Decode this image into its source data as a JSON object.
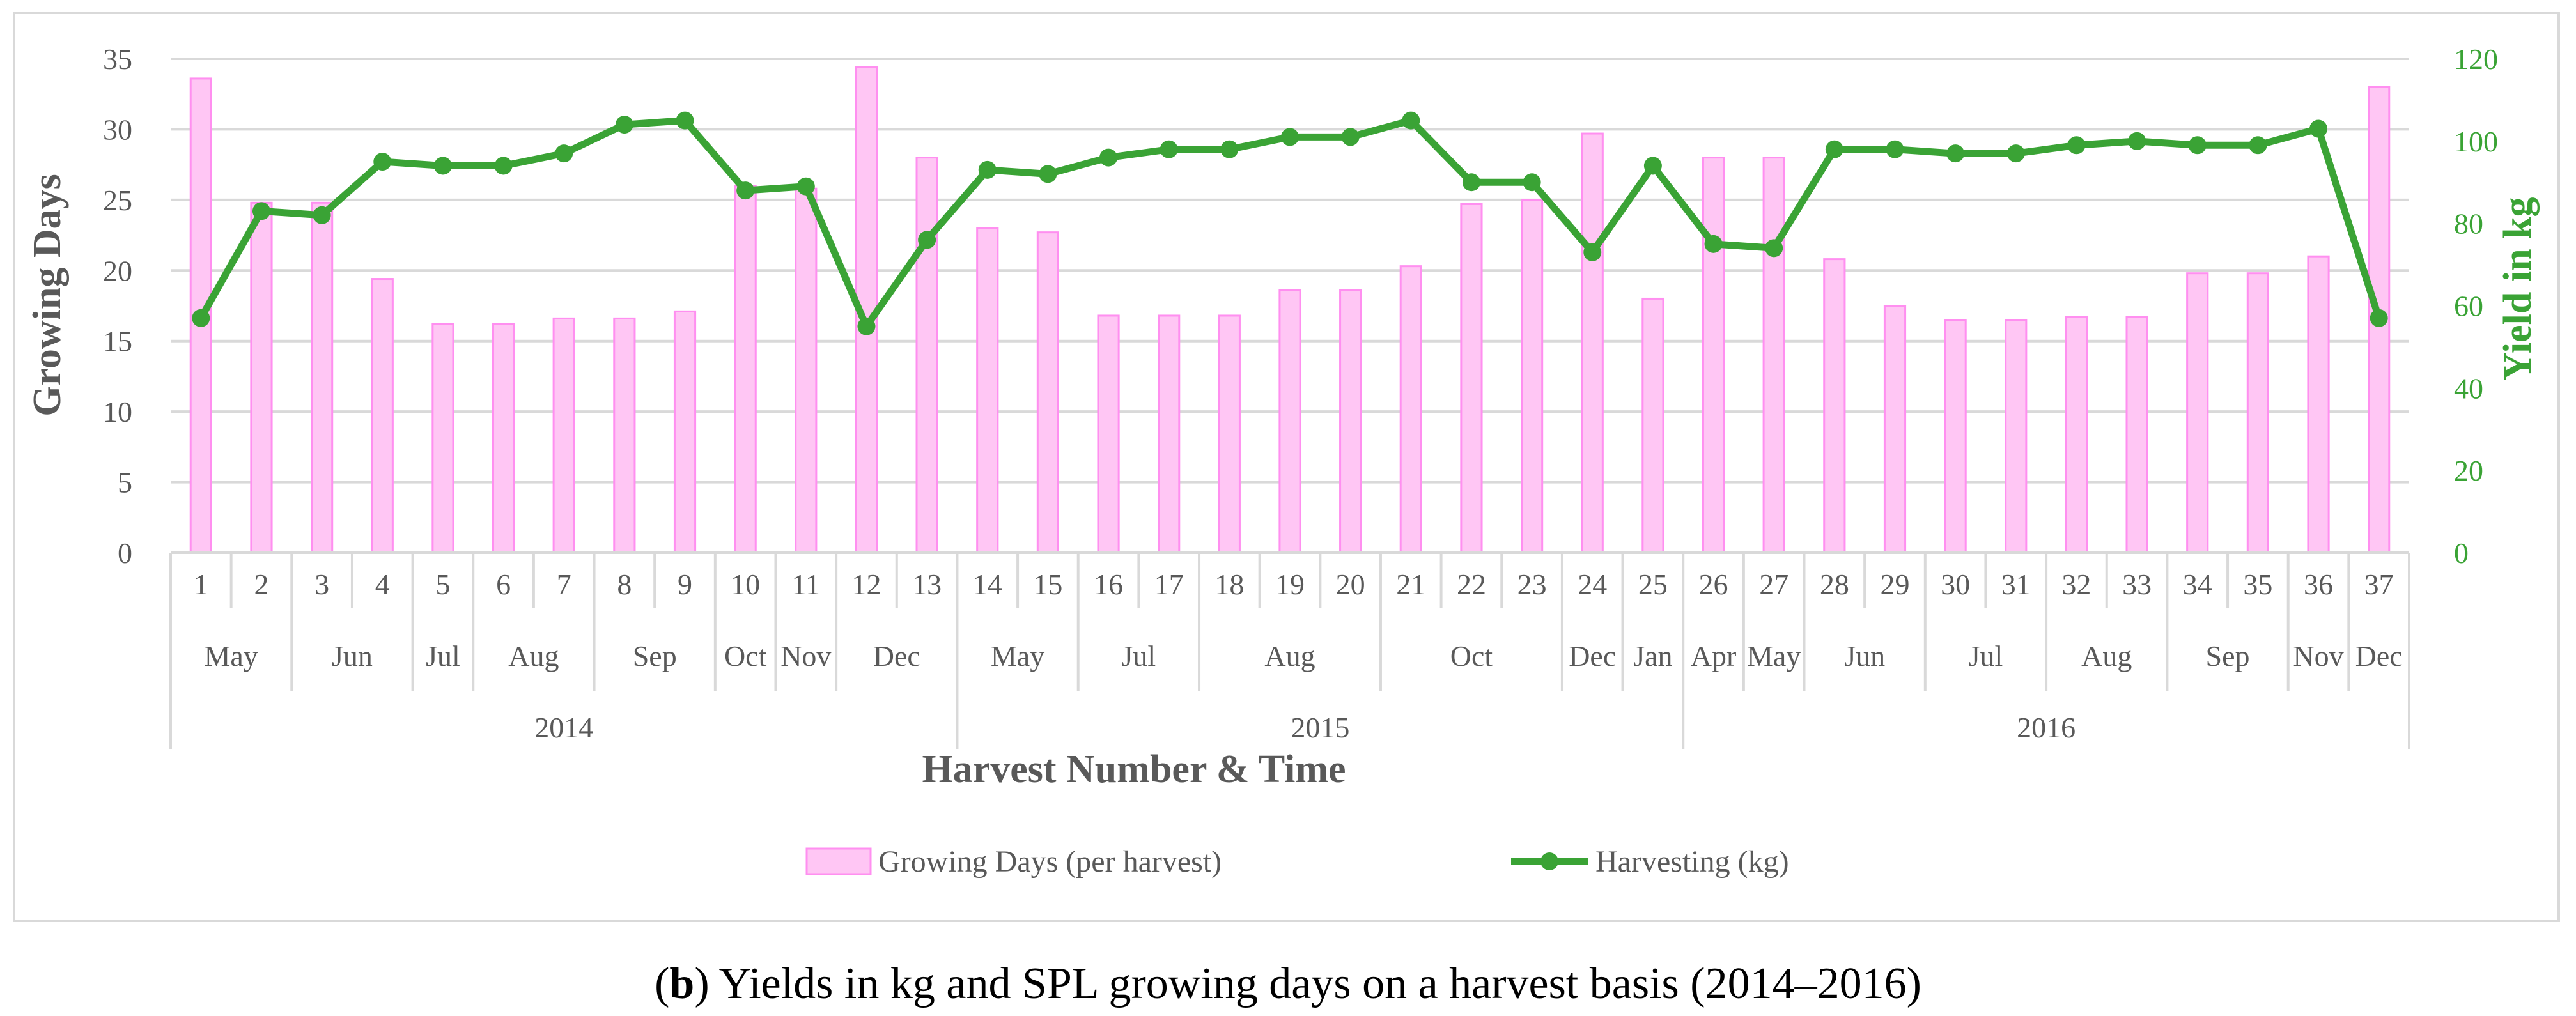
{
  "caption": {
    "label_bold": "b",
    "text": "Yields in kg and SPL growing days on a harvest basis (2014–2016)"
  },
  "colors": {
    "bar_fill": "#ffc6f4",
    "bar_stroke": "#ff8ff0",
    "line": "#3aa335",
    "grid": "#d9d9d9",
    "axis_text": "#595959"
  },
  "chart_data": {
    "type": "bar+line",
    "xlabel": "Harvest Number & Time",
    "ylabel": "Growing Days",
    "y2label": "Yield in kg",
    "ylim": [
      0,
      35
    ],
    "yticks": [
      0,
      5,
      10,
      15,
      20,
      25,
      30,
      35
    ],
    "y2lim": [
      0,
      120
    ],
    "y2ticks": [
      0,
      20,
      40,
      60,
      80,
      100,
      120
    ],
    "categories": [
      "1",
      "2",
      "3",
      "4",
      "5",
      "6",
      "7",
      "8",
      "9",
      "10",
      "11",
      "12",
      "13",
      "14",
      "15",
      "16",
      "17",
      "18",
      "19",
      "20",
      "21",
      "22",
      "23",
      "24",
      "25",
      "26",
      "27",
      "28",
      "29",
      "30",
      "31",
      "32",
      "33",
      "34",
      "35",
      "36",
      "37"
    ],
    "months": [
      {
        "label": "May",
        "start": 1,
        "end": 2
      },
      {
        "label": "Jun",
        "start": 3,
        "end": 4
      },
      {
        "label": "Jul",
        "start": 5,
        "end": 5
      },
      {
        "label": "Aug",
        "start": 6,
        "end": 7
      },
      {
        "label": "Sep",
        "start": 8,
        "end": 9
      },
      {
        "label": "Oct",
        "start": 10,
        "end": 10
      },
      {
        "label": "Nov",
        "start": 11,
        "end": 11
      },
      {
        "label": "Dec",
        "start": 12,
        "end": 13
      },
      {
        "label": "May",
        "start": 14,
        "end": 15
      },
      {
        "label": "Jul",
        "start": 16,
        "end": 17
      },
      {
        "label": "Aug",
        "start": 18,
        "end": 20
      },
      {
        "label": "Oct",
        "start": 21,
        "end": 23
      },
      {
        "label": "Dec",
        "start": 24,
        "end": 24
      },
      {
        "label": "Jan",
        "start": 25,
        "end": 25
      },
      {
        "label": "Apr",
        "start": 26,
        "end": 26
      },
      {
        "label": "May",
        "start": 27,
        "end": 27
      },
      {
        "label": "Jun",
        "start": 28,
        "end": 29
      },
      {
        "label": "Jul",
        "start": 30,
        "end": 31
      },
      {
        "label": "Aug",
        "start": 32,
        "end": 33
      },
      {
        "label": "Sep",
        "start": 34,
        "end": 35
      },
      {
        "label": "Nov",
        "start": 36,
        "end": 36
      },
      {
        "label": "Dec",
        "start": 37,
        "end": 37
      }
    ],
    "years": [
      {
        "label": "2014",
        "start": 1,
        "end": 13
      },
      {
        "label": "2015",
        "start": 14,
        "end": 25
      },
      {
        "label": "2016",
        "start": 26,
        "end": 37
      }
    ],
    "series": [
      {
        "name": "Growing Days (per harvest)",
        "type": "bar",
        "axis": "left",
        "values": [
          33.6,
          24.8,
          24.8,
          19.4,
          16.2,
          16.2,
          16.6,
          16.6,
          17.1,
          26.0,
          25.8,
          34.4,
          28.0,
          23.0,
          22.7,
          16.8,
          16.8,
          16.8,
          18.6,
          18.6,
          20.3,
          24.7,
          25.0,
          29.7,
          18.0,
          28.0,
          28.0,
          20.8,
          17.5,
          16.5,
          16.5,
          16.7,
          16.7,
          19.8,
          19.8,
          21.0,
          33.0
        ]
      },
      {
        "name": "Harvesting (kg)",
        "type": "line",
        "axis": "right",
        "values": [
          57,
          83,
          82,
          95,
          94,
          94,
          97,
          104,
          105,
          88,
          89,
          55,
          76,
          93,
          92,
          96,
          98,
          98,
          101,
          101,
          105,
          90,
          90,
          73,
          94,
          75,
          74,
          98,
          98,
          97,
          97,
          99,
          100,
          99,
          99,
          103,
          57
        ]
      }
    ],
    "legend": {
      "position": "bottom-center",
      "bar_label": "Growing Days (per harvest)",
      "line_label": "Harvesting (kg)"
    }
  }
}
